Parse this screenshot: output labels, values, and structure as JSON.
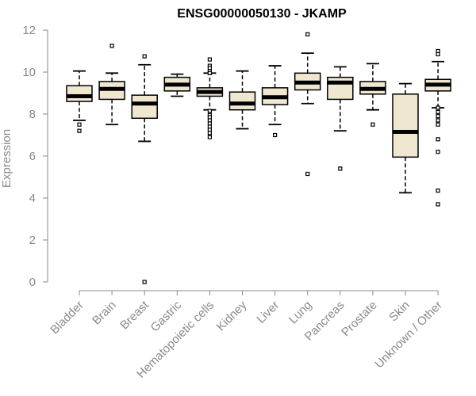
{
  "chart_data": {
    "type": "boxplot",
    "title": "ENSG00000050130 - JKAMP",
    "xlabel": "",
    "ylabel": "Expression",
    "ylim": [
      0,
      12
    ],
    "yticks": [
      0,
      2,
      4,
      6,
      8,
      10,
      12
    ],
    "grid": false,
    "colors": {
      "box_fill": "#efe7cf",
      "box_stroke": "#000000",
      "median": "#000000",
      "axis": "#8a8a8a"
    },
    "categories": [
      "Bladder",
      "Brain",
      "Breast",
      "Gastric",
      "Hematopoietic cells",
      "Kidney",
      "Liver",
      "Lung",
      "Pancreas",
      "Prostate",
      "Skin",
      "Unknown / Other"
    ],
    "boxes": [
      {
        "whisker_low": 7.7,
        "q1": 8.6,
        "median": 8.85,
        "q3": 9.35,
        "whisker_high": 10.05,
        "outliers": [
          7.5,
          7.2
        ]
      },
      {
        "whisker_low": 7.5,
        "q1": 8.7,
        "median": 9.2,
        "q3": 9.55,
        "whisker_high": 9.95,
        "outliers": [
          11.25
        ]
      },
      {
        "whisker_low": 6.7,
        "q1": 7.8,
        "median": 8.5,
        "q3": 8.9,
        "whisker_high": 10.35,
        "outliers": [
          10.75,
          0.0
        ]
      },
      {
        "whisker_low": 8.85,
        "q1": 9.1,
        "median": 9.4,
        "q3": 9.75,
        "whisker_high": 9.9,
        "outliers": []
      },
      {
        "whisker_low": 8.2,
        "q1": 8.85,
        "median": 9.05,
        "q3": 9.25,
        "whisker_high": 9.95,
        "outliers": [
          10.6,
          10.3,
          10.2,
          10.05,
          9.95,
          8.15,
          7.95,
          7.85,
          7.7,
          7.55,
          7.4,
          7.25,
          7.1,
          6.9
        ]
      },
      {
        "whisker_low": 7.3,
        "q1": 8.2,
        "median": 8.5,
        "q3": 9.05,
        "whisker_high": 10.05,
        "outliers": []
      },
      {
        "whisker_low": 7.5,
        "q1": 8.45,
        "median": 8.8,
        "q3": 9.25,
        "whisker_high": 10.3,
        "outliers": [
          7.0
        ]
      },
      {
        "whisker_low": 8.5,
        "q1": 9.15,
        "median": 9.5,
        "q3": 9.95,
        "whisker_high": 10.9,
        "outliers": [
          11.8,
          5.15
        ]
      },
      {
        "whisker_low": 7.2,
        "q1": 8.7,
        "median": 9.5,
        "q3": 9.75,
        "whisker_high": 10.25,
        "outliers": [
          5.4
        ]
      },
      {
        "whisker_low": 8.2,
        "q1": 8.95,
        "median": 9.2,
        "q3": 9.55,
        "whisker_high": 10.4,
        "outliers": [
          7.5
        ]
      },
      {
        "whisker_low": 4.25,
        "q1": 5.95,
        "median": 7.15,
        "q3": 8.95,
        "whisker_high": 9.45,
        "outliers": []
      },
      {
        "whisker_low": 8.3,
        "q1": 9.1,
        "median": 9.4,
        "q3": 9.65,
        "whisker_high": 10.5,
        "outliers": [
          11.0,
          10.85,
          8.3,
          8.1,
          7.9,
          7.7,
          7.5,
          6.8,
          6.2,
          4.35,
          3.7
        ]
      }
    ]
  }
}
